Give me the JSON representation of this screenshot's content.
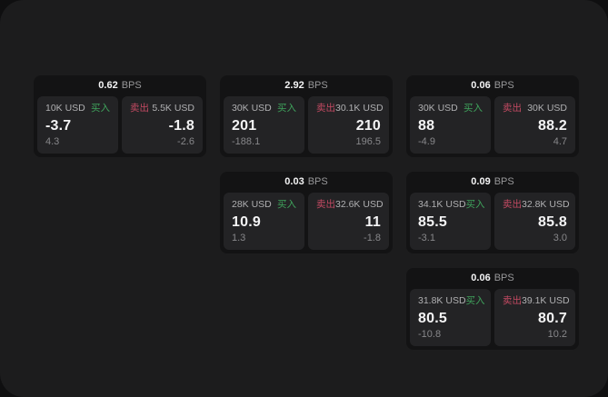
{
  "theme": {
    "bg_outer": "#0f0f10",
    "bg_page": "#1c1c1d",
    "card_bg": "#131314",
    "panel_bg": "#232325",
    "accent_green": "#3fa35c",
    "accent_red": "#c34a62",
    "value_white": "#f4f4f5",
    "label_gray": "#b0b0b2",
    "muted_gray": "#87878a"
  },
  "labels": {
    "bps_unit": "BPS",
    "buy": "买入",
    "sell": "卖出"
  },
  "cards": [
    {
      "row": 1,
      "col": 1,
      "bps": "0.62",
      "buy": {
        "amount": "10K USD",
        "value": "-3.7",
        "delta": "4.3"
      },
      "sell": {
        "amount": "5.5K USD",
        "value": "-1.8",
        "delta": "-2.6"
      }
    },
    {
      "row": 1,
      "col": 2,
      "bps": "2.92",
      "buy": {
        "amount": "30K USD",
        "value": "201",
        "delta": "-188.1"
      },
      "sell": {
        "amount": "30.1K USD",
        "value": "210",
        "delta": "196.5"
      }
    },
    {
      "row": 1,
      "col": 3,
      "bps": "0.06",
      "buy": {
        "amount": "30K USD",
        "value": "88",
        "delta": "-4.9"
      },
      "sell": {
        "amount": "30K USD",
        "value": "88.2",
        "delta": "4.7"
      }
    },
    {
      "row": 2,
      "col": 2,
      "bps": "0.03",
      "buy": {
        "amount": "28K USD",
        "value": "10.9",
        "delta": "1.3"
      },
      "sell": {
        "amount": "32.6K USD",
        "value": "11",
        "delta": "-1.8"
      }
    },
    {
      "row": 2,
      "col": 3,
      "bps": "0.09",
      "buy": {
        "amount": "34.1K USD",
        "value": "85.5",
        "delta": "-3.1"
      },
      "sell": {
        "amount": "32.8K USD",
        "value": "85.8",
        "delta": "3.0"
      }
    },
    {
      "row": 3,
      "col": 3,
      "bps": "0.06",
      "buy": {
        "amount": "31.8K USD",
        "value": "80.5",
        "delta": "-10.8"
      },
      "sell": {
        "amount": "39.1K USD",
        "value": "80.7",
        "delta": "10.2"
      }
    }
  ]
}
